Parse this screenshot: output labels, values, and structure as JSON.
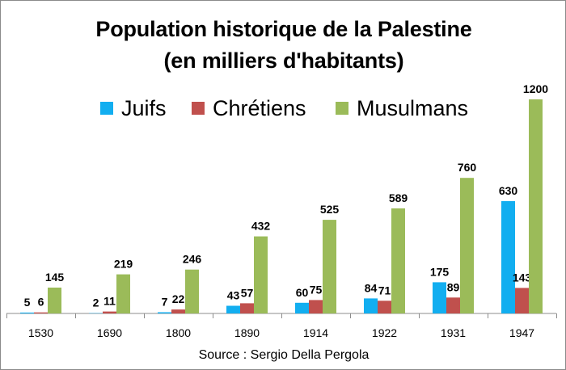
{
  "chart_data": {
    "type": "bar",
    "title": "Population historique de la Palestine",
    "subtitle": "(en milliers d'habitants)",
    "categories": [
      "1530",
      "1690",
      "1800",
      "1890",
      "1914",
      "1922",
      "1931",
      "1947"
    ],
    "series": [
      {
        "name": "Juifs",
        "color": "#12aef0",
        "values": [
          5,
          2,
          7,
          43,
          60,
          84,
          175,
          630
        ]
      },
      {
        "name": "Chrétiens",
        "color": "#c0504d",
        "values": [
          6,
          11,
          22,
          57,
          75,
          71,
          89,
          143
        ]
      },
      {
        "name": "Musulmans",
        "color": "#9bbb59",
        "values": [
          145,
          219,
          246,
          432,
          525,
          589,
          760,
          1200
        ]
      }
    ],
    "ylim": [
      0,
      1200
    ],
    "grid": false,
    "legend_position": "top",
    "source": "Source : Sergio Della Pergola"
  }
}
